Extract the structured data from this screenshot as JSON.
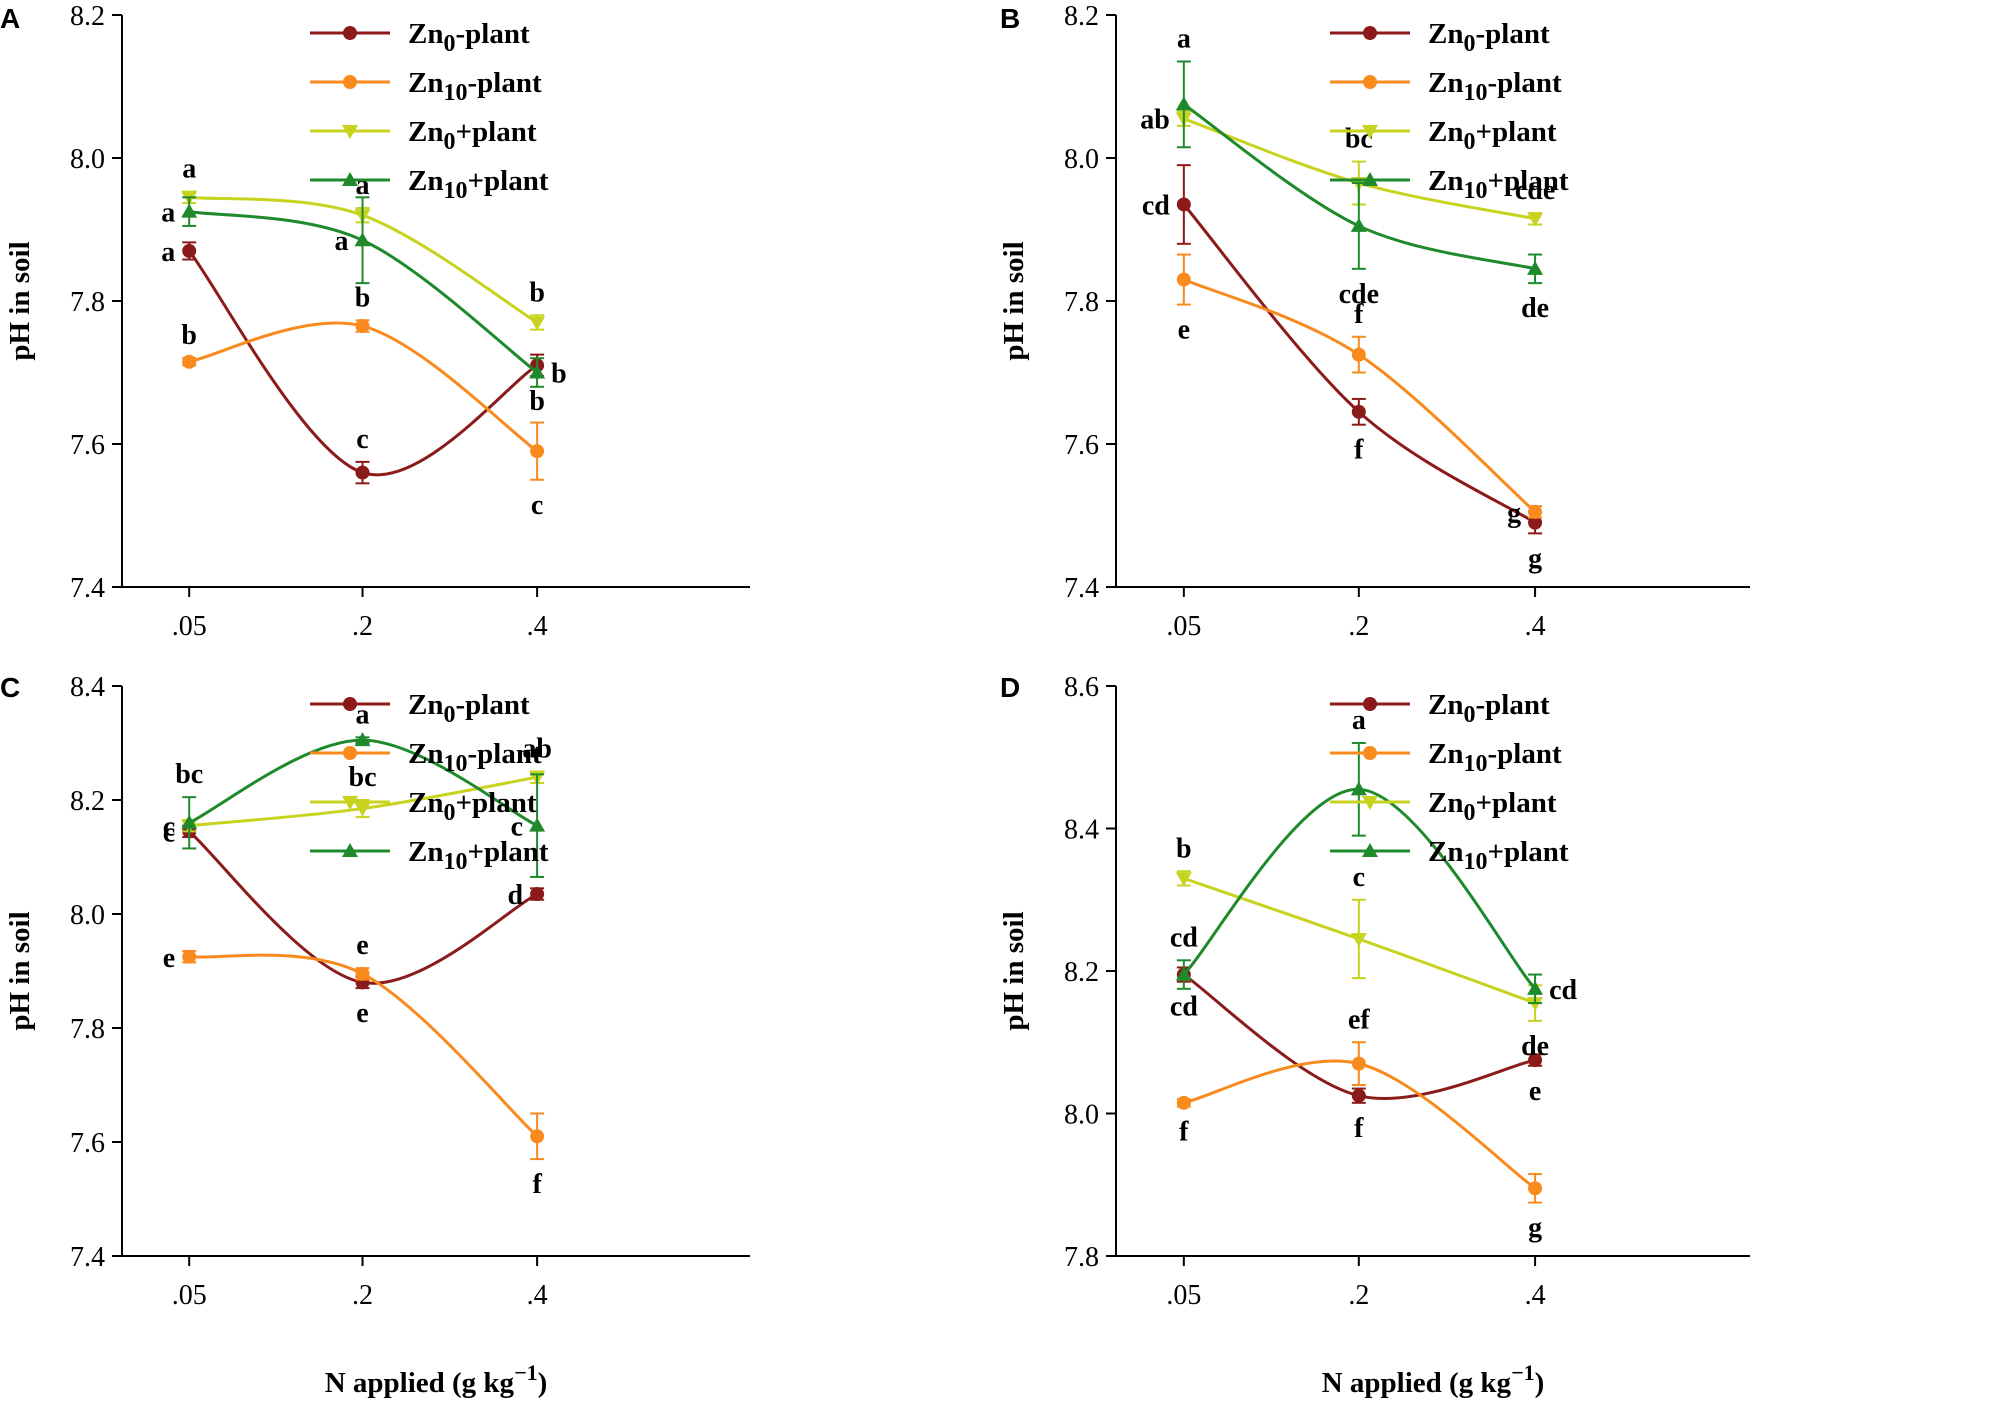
{
  "figure": {
    "xlabel": "N applied (g kg",
    "xlabel_sup": "−1",
    "xlabel_end": ")",
    "ylabel": "pH in soil",
    "legend": [
      {
        "pre": "Zn",
        "sub": "0",
        "post": "-plant",
        "color": "#8B1A1A",
        "marker": "circle"
      },
      {
        "pre": "Zn",
        "sub": "10",
        "post": "-plant",
        "color": "#F98A1E",
        "marker": "circle"
      },
      {
        "pre": "Zn",
        "sub": "0",
        "post": "+plant",
        "color": "#C8D31F",
        "marker": "triangle-down"
      },
      {
        "pre": "Zn",
        "sub": "10",
        "post": "+plant",
        "color": "#1E8A2C",
        "marker": "triangle-up"
      }
    ]
  },
  "chart_data": [
    {
      "type": "line",
      "panel": "A",
      "xlabel": "",
      "ylabel": "pH in soil",
      "ylim": [
        7.4,
        8.2
      ],
      "yticks": [
        "7.4",
        "7.6",
        "7.8",
        "8.0",
        "8.2"
      ],
      "categories": [
        ".05",
        ".2",
        ".4"
      ],
      "series": [
        {
          "name": "Zn0-plant",
          "values": [
            7.87,
            7.56,
            7.71
          ],
          "errors": [
            0.012,
            0.015,
            0.015
          ],
          "letters": [
            "a",
            "c",
            "b"
          ],
          "letter_pos": [
            "left",
            "above",
            "below"
          ]
        },
        {
          "name": "Zn10-plant",
          "values": [
            7.715,
            7.765,
            7.59
          ],
          "errors": [
            0.005,
            0.008,
            0.04
          ],
          "letters": [
            "b",
            "b",
            "c"
          ],
          "letter_pos": [
            "above",
            "above",
            "below"
          ]
        },
        {
          "name": "Zn0+plant",
          "values": [
            7.945,
            7.92,
            7.77
          ],
          "errors": [
            0.008,
            0.01,
            0.01
          ],
          "letters": [
            "a",
            "a",
            "b"
          ],
          "letter_pos": [
            "above",
            "above",
            "above"
          ]
        },
        {
          "name": "Zn10+plant",
          "values": [
            7.925,
            7.885,
            7.7
          ],
          "errors": [
            0.02,
            0.06,
            0.02
          ],
          "letters": [
            "a",
            "a",
            "b"
          ],
          "letter_pos": [
            "left",
            "left",
            "right"
          ]
        }
      ]
    },
    {
      "type": "line",
      "panel": "B",
      "xlabel": "",
      "ylabel": "pH in soil",
      "ylim": [
        7.4,
        8.2
      ],
      "yticks": [
        "7.4",
        "7.6",
        "7.8",
        "8.0",
        "8.2"
      ],
      "categories": [
        ".05",
        ".2",
        ".4"
      ],
      "series": [
        {
          "name": "Zn0-plant",
          "values": [
            7.935,
            7.645,
            7.49
          ],
          "errors": [
            0.055,
            0.018,
            0.015
          ],
          "letters": [
            "cd",
            "f",
            "g"
          ],
          "letter_pos": [
            "left",
            "below",
            "below"
          ]
        },
        {
          "name": "Zn10-plant",
          "values": [
            7.83,
            7.725,
            7.505
          ],
          "errors": [
            0.035,
            0.025,
            0.008
          ],
          "letters": [
            "e",
            "f",
            "g"
          ],
          "letter_pos": [
            "below",
            "above",
            "left"
          ]
        },
        {
          "name": "Zn0+plant",
          "values": [
            8.055,
            7.965,
            7.915
          ],
          "errors": [
            0.01,
            0.03,
            0.008
          ],
          "letters": [
            "ab",
            "bc",
            "cde"
          ],
          "letter_pos": [
            "left",
            "above",
            "above"
          ]
        },
        {
          "name": "Zn10+plant",
          "values": [
            8.075,
            7.905,
            7.845
          ],
          "errors": [
            0.06,
            0.06,
            0.02
          ],
          "letters": [
            "a",
            "cde",
            "de"
          ],
          "letter_pos": [
            "above",
            "below",
            "below"
          ]
        }
      ]
    },
    {
      "type": "line",
      "panel": "C",
      "xlabel": "N applied (g kg−1)",
      "ylabel": "pH in soil",
      "ylim": [
        7.4,
        8.4
      ],
      "yticks": [
        "7.4",
        "7.6",
        "7.8",
        "8.0",
        "8.2",
        "8.4"
      ],
      "categories": [
        ".05",
        ".2",
        ".4"
      ],
      "series": [
        {
          "name": "Zn0-plant",
          "values": [
            8.145,
            7.88,
            8.035
          ],
          "errors": [
            0.01,
            0.01,
            0.01
          ],
          "letters": [
            "c",
            "e",
            "d"
          ],
          "letter_pos": [
            "left",
            "below",
            "left"
          ]
        },
        {
          "name": "Zn10-plant",
          "values": [
            7.925,
            7.895,
            7.61
          ],
          "errors": [
            0.01,
            0.01,
            0.04
          ],
          "letters": [
            "e",
            "e",
            "f"
          ],
          "letter_pos": [
            "left",
            "above",
            "below"
          ]
        },
        {
          "name": "Zn0+plant",
          "values": [
            8.155,
            8.185,
            8.24
          ],
          "errors": [
            0.01,
            0.015,
            0.01
          ],
          "letters": [
            "c",
            "bc",
            "ab"
          ],
          "letter_pos": [
            "left",
            "above",
            "above"
          ]
        },
        {
          "name": "Zn10+plant",
          "values": [
            8.16,
            8.305,
            8.155
          ],
          "errors": [
            0.045,
            0.005,
            0.09
          ],
          "letters": [
            "bc",
            "a",
            "c"
          ],
          "letter_pos": [
            "above",
            "above",
            "left"
          ]
        }
      ]
    },
    {
      "type": "line",
      "panel": "D",
      "xlabel": "N applied (g kg−1)",
      "ylabel": "pH in soil",
      "ylim": [
        7.8,
        8.6
      ],
      "yticks": [
        "7.8",
        "8.0",
        "8.2",
        "8.4",
        "8.6"
      ],
      "categories": [
        ".05",
        ".2",
        ".4"
      ],
      "series": [
        {
          "name": "Zn0-plant",
          "values": [
            8.195,
            8.025,
            8.075
          ],
          "errors": [
            0.01,
            0.01,
            0.008
          ],
          "letters": [
            "cd",
            "f",
            "e"
          ],
          "letter_pos": [
            "below",
            "below",
            "below"
          ]
        },
        {
          "name": "Zn10-plant",
          "values": [
            8.015,
            8.07,
            7.895
          ],
          "errors": [
            0.005,
            0.03,
            0.02
          ],
          "letters": [
            "f",
            "ef",
            "g"
          ],
          "letter_pos": [
            "below",
            "above",
            "below"
          ]
        },
        {
          "name": "Zn0+plant",
          "values": [
            8.33,
            8.245,
            8.155
          ],
          "errors": [
            0.01,
            0.055,
            0.025
          ],
          "letters": [
            "b",
            "c",
            "de"
          ],
          "letter_pos": [
            "above",
            "above",
            "below"
          ]
        },
        {
          "name": "Zn10+plant",
          "values": [
            8.195,
            8.455,
            8.175
          ],
          "errors": [
            0.02,
            0.065,
            0.02
          ],
          "letters": [
            "cd",
            "a",
            "cd"
          ],
          "letter_pos": [
            "above",
            "above",
            "right"
          ]
        }
      ]
    }
  ]
}
